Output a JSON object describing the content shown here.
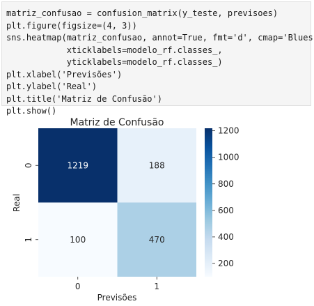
{
  "code_lines": [
    "matriz_confusao = confusion_matrix(y_teste, previsoes)",
    "plt.figure(figsize=(4, 3))",
    "sns.heatmap(matriz_confusao, annot=True, fmt='d', cmap='Blues',",
    "            xticklabels=modelo_rf.classes_,",
    "            yticklabels=modelo_rf.classes_)",
    "plt.xlabel('Previsões')",
    "plt.ylabel('Real')",
    "plt.title('Matriz de Confusão')",
    "plt.show()"
  ],
  "chart_data": {
    "type": "heatmap",
    "title": "Matriz de Confusão",
    "xlabel": "Previsões",
    "ylabel": "Real",
    "x_categories": [
      "0",
      "1"
    ],
    "y_categories": [
      "0",
      "1"
    ],
    "values": [
      [
        1219,
        188
      ],
      [
        100,
        470
      ]
    ],
    "colormap": "Blues",
    "colorbar": {
      "vmin": 100,
      "vmax": 1219,
      "ticks": [
        200,
        400,
        600,
        800,
        1000,
        1200
      ]
    },
    "annotations": true
  }
}
